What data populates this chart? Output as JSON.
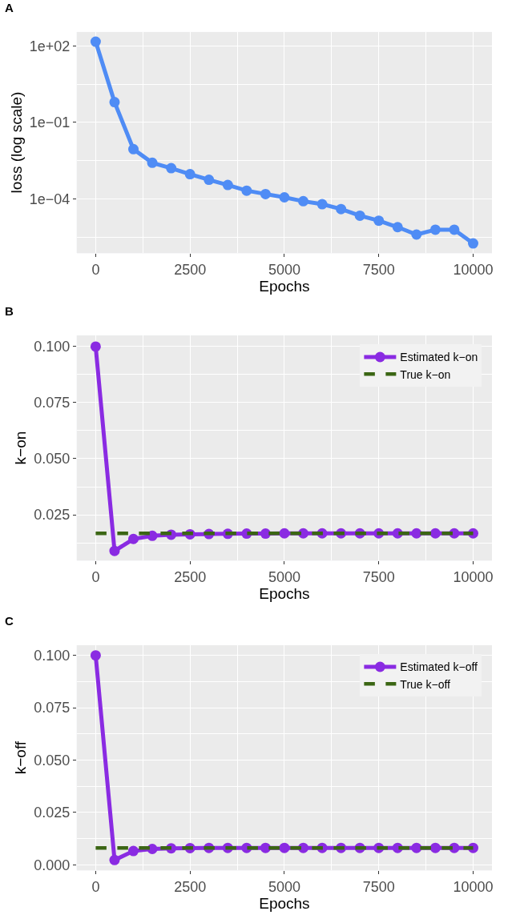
{
  "chart_data": [
    {
      "type": "line",
      "title": "A",
      "xlabel": "Epochs",
      "ylabel": "loss (log scale)",
      "log": "y",
      "grid": true,
      "marker": "circle",
      "line_style": "solid",
      "x": [
        0,
        500,
        1000,
        1500,
        2000,
        2500,
        3000,
        3500,
        4000,
        4500,
        5000,
        5500,
        6000,
        6500,
        7000,
        7500,
        8000,
        8500,
        9000,
        9500,
        10000
      ],
      "xlim": [
        -500,
        10500
      ],
      "xticks": [
        0,
        2500,
        5000,
        7500,
        10000
      ],
      "ylim": [
        7.5e-07,
        350
      ],
      "yticks": [
        {
          "value": 100,
          "label": "1e+02"
        },
        {
          "value": 0.1,
          "label": "1e−01"
        },
        {
          "value": 0.0001,
          "label": "1e−04"
        }
      ],
      "series": [
        {
          "color": "#4f8cf5",
          "values": [
            145,
            0.62,
            0.0089,
            0.0026,
            0.0016,
            0.00093,
            0.00056,
            0.00035,
            0.00021,
            0.000155,
            0.000115,
            8.1e-05,
            6.2e-05,
            4e-05,
            2.2e-05,
            1.4e-05,
            7.8e-06,
            4e-06,
            6.2e-06,
            6.2e-06,
            1.8e-06
          ]
        }
      ]
    },
    {
      "type": "line",
      "title": "B",
      "xlabel": "Epochs",
      "ylabel": "k−on",
      "grid": true,
      "marker": "circle",
      "line_style": "solid",
      "legend": "top right",
      "x": [
        0,
        500,
        1000,
        1500,
        2000,
        2500,
        3000,
        3500,
        4000,
        4500,
        5000,
        5500,
        6000,
        6500,
        7000,
        7500,
        8000,
        8500,
        9000,
        9500,
        10000
      ],
      "xlim": [
        -500,
        10500
      ],
      "xticks": [
        0,
        2500,
        5000,
        7500,
        10000
      ],
      "ylim": [
        0.0046,
        0.105
      ],
      "yticks": [
        {
          "value": 0.025,
          "label": "0.025"
        },
        {
          "value": 0.05,
          "label": "0.050"
        },
        {
          "value": 0.075,
          "label": "0.075"
        },
        {
          "value": 0.1,
          "label": "0.100"
        }
      ],
      "series": [
        {
          "name": "Estimated k−on",
          "color": "#8a2be2",
          "values": [
            0.1,
            0.0089,
            0.0142,
            0.0156,
            0.0161,
            0.0163,
            0.0164,
            0.0165,
            0.0166,
            0.0166,
            0.0167,
            0.0167,
            0.0167,
            0.0167,
            0.0167,
            0.0167,
            0.0167,
            0.0167,
            0.0167,
            0.0167,
            0.0167
          ]
        },
        {
          "name": "True k−on",
          "color": "#3b6614",
          "line_style": "dashed",
          "marker": "none",
          "values": [
            0.0167,
            0.0167,
            0.0167,
            0.0167,
            0.0167,
            0.0167,
            0.0167,
            0.0167,
            0.0167,
            0.0167,
            0.0167,
            0.0167,
            0.0167,
            0.0167,
            0.0167,
            0.0167,
            0.0167,
            0.0167,
            0.0167,
            0.0167,
            0.0167
          ]
        }
      ]
    },
    {
      "type": "line",
      "title": "C",
      "xlabel": "Epochs",
      "ylabel": "k−off",
      "grid": true,
      "marker": "circle",
      "line_style": "solid",
      "legend": "top right",
      "x": [
        0,
        500,
        1000,
        1500,
        2000,
        2500,
        3000,
        3500,
        4000,
        4500,
        5000,
        5500,
        6000,
        6500,
        7000,
        7500,
        8000,
        8500,
        9000,
        9500,
        10000
      ],
      "xlim": [
        -500,
        10500
      ],
      "xticks": [
        0,
        2500,
        5000,
        7500,
        10000
      ],
      "ylim": [
        -0.0026,
        0.1049
      ],
      "yticks": [
        {
          "value": 0,
          "label": "0.000"
        },
        {
          "value": 0.025,
          "label": "0.025"
        },
        {
          "value": 0.05,
          "label": "0.050"
        },
        {
          "value": 0.075,
          "label": "0.075"
        },
        {
          "value": 0.1,
          "label": "0.100"
        }
      ],
      "series": [
        {
          "name": "Estimated k−off",
          "color": "#8a2be2",
          "values": [
            0.1,
            0.0023,
            0.0066,
            0.0076,
            0.0079,
            0.008,
            0.0081,
            0.0081,
            0.0081,
            0.0081,
            0.0081,
            0.0081,
            0.0081,
            0.0081,
            0.0081,
            0.0081,
            0.0081,
            0.0081,
            0.0081,
            0.0081,
            0.0081
          ]
        },
        {
          "name": "True k−off",
          "color": "#3b6614",
          "line_style": "dashed",
          "marker": "none",
          "values": [
            0.0081,
            0.0081,
            0.0081,
            0.0081,
            0.0081,
            0.0081,
            0.0081,
            0.0081,
            0.0081,
            0.0081,
            0.0081,
            0.0081,
            0.0081,
            0.0081,
            0.0081,
            0.0081,
            0.0081,
            0.0081,
            0.0081,
            0.0081,
            0.0081
          ]
        }
      ]
    }
  ]
}
